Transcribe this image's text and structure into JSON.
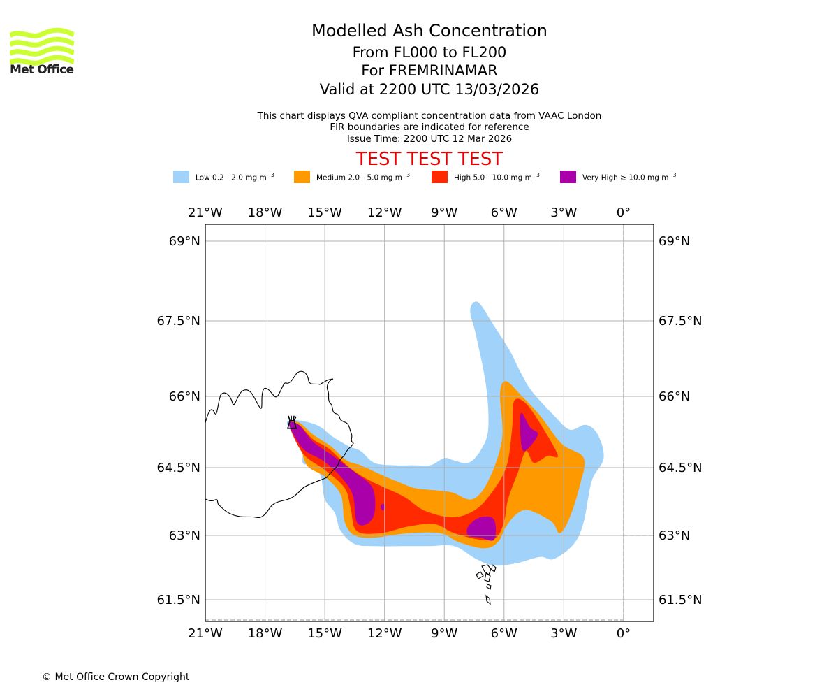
{
  "header": {
    "logo": {
      "icon": "met-office-waves-logo",
      "text": "Met Office",
      "color": "#ccff33"
    },
    "title": "Modelled Ash Concentration",
    "level_range": "From FL000 to FL200",
    "volcano": "For FREMRINAMAR",
    "valid_time": "Valid at 2200 UTC 13/03/2026",
    "info_lines": [
      "This chart displays QVA compliant concentration data from VAAC London",
      "FIR boundaries are indicated for reference",
      "Issue Time: 2200 UTC 12 Mar 2026"
    ],
    "test_banner": "TEST TEST TEST",
    "test_color": "#e60000"
  },
  "legend": [
    {
      "name": "Low",
      "range": "Low 0.2 - 2.0 mg m",
      "exp": "−3",
      "color": "#a0d2fa"
    },
    {
      "name": "Medium",
      "range": "Medium 2.0 - 5.0 mg m",
      "exp": "−3",
      "color": "#ff9900"
    },
    {
      "name": "High",
      "range": "High 5.0 - 10.0 mg m",
      "exp": "−3",
      "color": "#ff2a00"
    },
    {
      "name": "Very High",
      "range": "Very High  ≥  10.0 mg m",
      "exp": "−3",
      "color": "#aa00aa"
    }
  ],
  "map": {
    "extent": {
      "lon": [
        -21,
        1.5
      ],
      "lat": [
        60.9,
        69.3
      ]
    },
    "lon_ticks": [
      {
        "lon": -21,
        "label": "21°W"
      },
      {
        "lon": -18,
        "label": "18°W"
      },
      {
        "lon": -15,
        "label": "15°W"
      },
      {
        "lon": -12,
        "label": "12°W"
      },
      {
        "lon": -9,
        "label": "9°W"
      },
      {
        "lon": -6,
        "label": "6°W"
      },
      {
        "lon": -3,
        "label": "3°W"
      },
      {
        "lon": 0,
        "label": "0°"
      }
    ],
    "lat_ticks": [
      {
        "lat": 69,
        "label": "69°N"
      },
      {
        "lat": 67.5,
        "label": "67.5°N"
      },
      {
        "lat": 66,
        "label": "66°N"
      },
      {
        "lat": 64.5,
        "label": "64.5°N"
      },
      {
        "lat": 63,
        "label": "63°N"
      },
      {
        "lat": 61.5,
        "label": "61.5°N"
      }
    ],
    "volcano_marker": {
      "name": "Fremrinamar",
      "lon": -16.65,
      "lat": 65.4,
      "symbol": "volcano-icon"
    },
    "ash_levels": [
      {
        "level": "low",
        "color": "#a0d2fa",
        "polygons": [
          [
            [
              -16.9,
              65.45
            ],
            [
              -16.5,
              65.5
            ],
            [
              -15.8,
              65.45
            ],
            [
              -15.2,
              65.35
            ],
            [
              -14.6,
              65.15
            ],
            [
              -13.8,
              64.95
            ],
            [
              -13.2,
              64.85
            ],
            [
              -12.5,
              64.6
            ],
            [
              -11.5,
              64.55
            ],
            [
              -10.5,
              64.55
            ],
            [
              -9.7,
              64.55
            ],
            [
              -9,
              64.7
            ],
            [
              -8.5,
              64.65
            ],
            [
              -7.8,
              64.6
            ],
            [
              -7.2,
              64.85
            ],
            [
              -6.8,
              65.3
            ],
            [
              -6.9,
              66.2
            ],
            [
              -7.4,
              67.2
            ],
            [
              -7.7,
              67.7
            ],
            [
              -7.3,
              67.85
            ],
            [
              -6.5,
              67.4
            ],
            [
              -5.7,
              66.9
            ],
            [
              -5.2,
              66.5
            ],
            [
              -4.6,
              66.1
            ],
            [
              -3.5,
              65.6
            ],
            [
              -2.7,
              65.3
            ],
            [
              -1.9,
              65.4
            ],
            [
              -1.3,
              65.2
            ],
            [
              -1.0,
              64.7
            ],
            [
              -1.6,
              64.2
            ],
            [
              -2.0,
              63.3
            ],
            [
              -2.5,
              62.8
            ],
            [
              -3.5,
              62.45
            ],
            [
              -4.2,
              62.5
            ],
            [
              -5.4,
              62.35
            ],
            [
              -6.5,
              62.3
            ],
            [
              -7.4,
              62.45
            ],
            [
              -8.5,
              62.75
            ],
            [
              -9.8,
              62.75
            ],
            [
              -11,
              62.75
            ],
            [
              -12.5,
              62.75
            ],
            [
              -13.5,
              62.8
            ],
            [
              -14.2,
              63.1
            ],
            [
              -14.5,
              63.5
            ],
            [
              -15.0,
              63.8
            ],
            [
              -15.2,
              64.3
            ],
            [
              -15.6,
              64.55
            ],
            [
              -16.1,
              64.6
            ],
            [
              -16.1,
              64.95
            ],
            [
              -16.6,
              65.2
            ]
          ]
        ]
      },
      {
        "level": "medium",
        "color": "#ff9900",
        "polygons": [
          [
            [
              -16.8,
              65.42
            ],
            [
              -16.3,
              65.45
            ],
            [
              -15.6,
              65.2
            ],
            [
              -14.7,
              64.95
            ],
            [
              -13.9,
              64.65
            ],
            [
              -13.2,
              64.55
            ],
            [
              -12.2,
              64.35
            ],
            [
              -11.4,
              64.2
            ],
            [
              -10.5,
              64.05
            ],
            [
              -9.5,
              64.0
            ],
            [
              -8.6,
              63.95
            ],
            [
              -7.6,
              63.8
            ],
            [
              -6.8,
              64.2
            ],
            [
              -6.1,
              65.1
            ],
            [
              -6.2,
              66.05
            ],
            [
              -5.9,
              66.3
            ],
            [
              -5.1,
              66.0
            ],
            [
              -4.2,
              65.6
            ],
            [
              -3.1,
              65.0
            ],
            [
              -2.0,
              64.7
            ],
            [
              -2.2,
              64.1
            ],
            [
              -2.7,
              63.4
            ],
            [
              -3.2,
              63.05
            ],
            [
              -3.6,
              63.3
            ],
            [
              -4.7,
              63.55
            ],
            [
              -5.3,
              63.5
            ],
            [
              -5.9,
              63.2
            ],
            [
              -6.3,
              62.85
            ],
            [
              -7.0,
              62.7
            ],
            [
              -8.3,
              62.85
            ],
            [
              -9.2,
              63.05
            ],
            [
              -10.8,
              63.05
            ],
            [
              -12.5,
              62.95
            ],
            [
              -13.5,
              63.0
            ],
            [
              -14.0,
              63.3
            ],
            [
              -14.2,
              63.9
            ],
            [
              -15.0,
              64.3
            ],
            [
              -15.9,
              64.55
            ],
            [
              -16.3,
              65.05
            ]
          ]
        ]
      },
      {
        "level": "high",
        "color": "#ff2a00",
        "polygons": [
          [
            [
              -16.8,
              65.42
            ],
            [
              -16.3,
              65.4
            ],
            [
              -15.6,
              65.1
            ],
            [
              -14.8,
              64.9
            ],
            [
              -13.9,
              64.55
            ],
            [
              -13.1,
              64.3
            ],
            [
              -12.2,
              64.1
            ],
            [
              -11.0,
              63.85
            ],
            [
              -10.0,
              63.55
            ],
            [
              -8.6,
              63.4
            ],
            [
              -7.5,
              63.55
            ],
            [
              -6.7,
              63.9
            ],
            [
              -5.9,
              64.5
            ],
            [
              -5.6,
              65.3
            ],
            [
              -5.5,
              65.9
            ],
            [
              -4.9,
              65.85
            ],
            [
              -4.0,
              65.3
            ],
            [
              -3.3,
              64.75
            ],
            [
              -3.8,
              64.75
            ],
            [
              -4.5,
              64.6
            ],
            [
              -4.9,
              64.85
            ],
            [
              -5.3,
              64.4
            ],
            [
              -5.8,
              63.8
            ],
            [
              -6.0,
              63.3
            ],
            [
              -6.4,
              62.95
            ],
            [
              -7.2,
              62.9
            ],
            [
              -8.5,
              63.05
            ],
            [
              -9.5,
              63.25
            ],
            [
              -10.8,
              63.2
            ],
            [
              -12.2,
              63.05
            ],
            [
              -13.4,
              63.1
            ],
            [
              -13.7,
              63.6
            ],
            [
              -14.0,
              64.05
            ],
            [
              -15.0,
              64.45
            ],
            [
              -16.1,
              64.8
            ]
          ]
        ]
      },
      {
        "level": "very_high",
        "color": "#aa00aa",
        "polygons": [
          [
            [
              -16.8,
              65.42
            ],
            [
              -16.3,
              65.4
            ],
            [
              -15.6,
              65.05
            ],
            [
              -14.6,
              64.75
            ],
            [
              -13.5,
              64.4
            ],
            [
              -12.6,
              64.05
            ],
            [
              -12.5,
              63.5
            ],
            [
              -12.9,
              63.25
            ],
            [
              -13.4,
              63.3
            ],
            [
              -13.6,
              63.9
            ],
            [
              -14.2,
              64.3
            ],
            [
              -15.1,
              64.65
            ],
            [
              -16.1,
              64.9
            ]
          ],
          [
            [
              -5.1,
              65.65
            ],
            [
              -4.7,
              65.35
            ],
            [
              -4.3,
              65.2
            ],
            [
              -4.8,
              64.9
            ],
            [
              -5.1,
              64.9
            ],
            [
              -5.2,
              65.45
            ]
          ],
          [
            [
              -7.8,
              63.2
            ],
            [
              -7.2,
              63.4
            ],
            [
              -6.5,
              63.35
            ],
            [
              -6.5,
              62.9
            ],
            [
              -7.2,
              62.95
            ],
            [
              -7.8,
              63.0
            ]
          ],
          [
            [
              -12.2,
              63.65
            ],
            [
              -12.05,
              63.7
            ],
            [
              -11.95,
              63.62
            ],
            [
              -12.1,
              63.55
            ]
          ]
        ]
      }
    ]
  },
  "footer": {
    "copyright": "© Met Office Crown Copyright"
  }
}
